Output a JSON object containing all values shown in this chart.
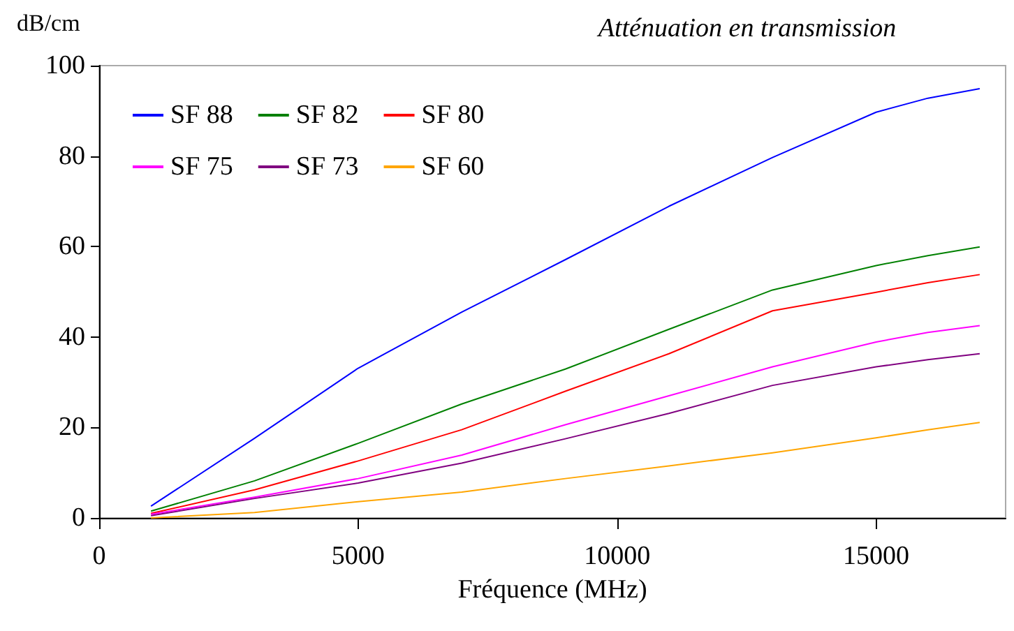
{
  "chart_data": {
    "type": "line",
    "title": "Atténuation en transmission",
    "xlabel": "Fréquence (MHz)",
    "ylabel": "dB/cm",
    "x": [
      1000,
      3000,
      5000,
      7000,
      9000,
      11000,
      13000,
      15000,
      16000,
      17000
    ],
    "series": [
      {
        "name": "SF 88",
        "color": "#0000ff",
        "values": [
          2.6,
          17.6,
          33.1,
          45.5,
          57.1,
          68.9,
          79.7,
          89.7,
          92.8,
          94.9
        ]
      },
      {
        "name": "SF 82",
        "color": "#008000",
        "values": [
          1.5,
          8.2,
          16.5,
          25.2,
          32.9,
          41.7,
          50.4,
          55.8,
          58,
          59.9
        ]
      },
      {
        "name": "SF 80",
        "color": "#ff0000",
        "values": [
          1.0,
          6.2,
          12.6,
          19.5,
          28.0,
          36.3,
          45.8,
          49.9,
          52,
          53.8
        ]
      },
      {
        "name": "SF 75",
        "color": "#ff00ff",
        "values": [
          0.8,
          4.6,
          8.7,
          13.9,
          20.6,
          27.0,
          33.4,
          38.9,
          41,
          42.5
        ]
      },
      {
        "name": "SF 73",
        "color": "#800080",
        "values": [
          0.5,
          4.3,
          7.7,
          12.1,
          17.5,
          23.1,
          29.3,
          33.4,
          35,
          36.3
        ]
      },
      {
        "name": "SF 60",
        "color": "#ffa500",
        "values": [
          0,
          1.2,
          3.6,
          5.7,
          8.7,
          11.5,
          14.4,
          17.7,
          19.5,
          21.1
        ]
      }
    ],
    "xlim": [
      0,
      17500
    ],
    "xticks": [
      0,
      5000,
      10000,
      15000
    ],
    "ylim": [
      0,
      100
    ],
    "yticks": [
      0,
      20,
      40,
      60,
      80,
      100
    ],
    "grid": false,
    "legend": "top left",
    "marker": "none",
    "line_style": "solid"
  }
}
